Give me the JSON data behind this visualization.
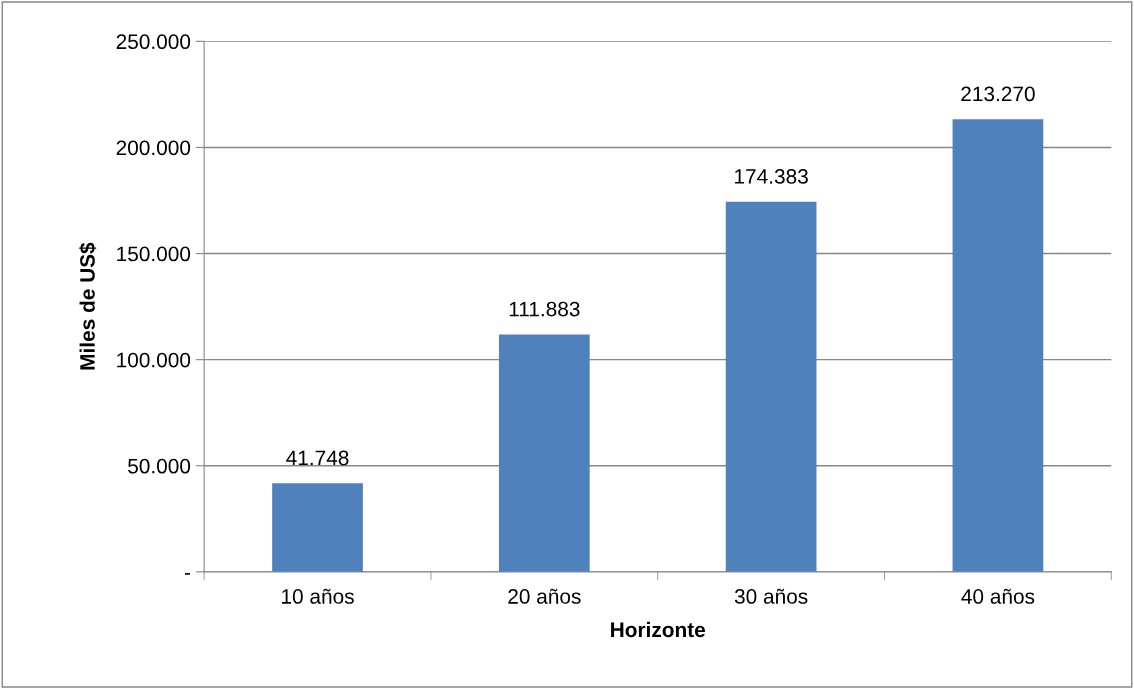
{
  "chart_data": {
    "type": "bar",
    "xlabel": "Horizonte",
    "ylabel": "Miles de US$",
    "categories": [
      "10 años",
      "20 años",
      "30 años",
      "40 años"
    ],
    "values": [
      41748,
      111883,
      174383,
      213270
    ],
    "value_labels": [
      "41.748",
      "111.883",
      "174.383",
      "213.270"
    ],
    "color": "#4f81bd",
    "ylim": [
      0,
      250000
    ],
    "yticks": [
      {
        "value": 0,
        "label": "-"
      },
      {
        "value": 50000,
        "label": "50.000"
      },
      {
        "value": 100000,
        "label": "100.000"
      },
      {
        "value": 150000,
        "label": "150.000"
      },
      {
        "value": 200000,
        "label": "200.000"
      },
      {
        "value": 250000,
        "label": "250.000"
      }
    ],
    "grid": "y"
  }
}
